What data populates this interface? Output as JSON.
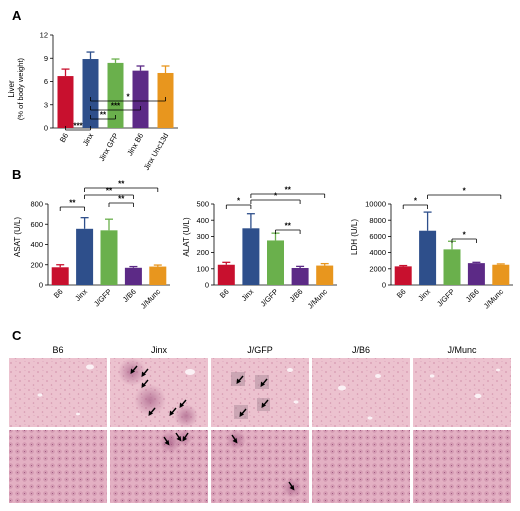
{
  "colors": {
    "B6": "#c8102e",
    "Jinx": "#2e4f8b",
    "JinxGFP": "#6ab04c",
    "JinxB6": "#5c2a86",
    "JinxUnc13d": "#e8961e",
    "tissue_light": "#ecc2cf",
    "tissue_dense": "#d594ae"
  },
  "panel_letters": [
    "A",
    "B",
    "C"
  ],
  "chart_data": [
    {
      "panel": "A",
      "type": "bar",
      "ylabel_lines": [
        "Liver",
        "(% of body weight)"
      ],
      "ylim": [
        0,
        12
      ],
      "yticks": [
        0,
        3,
        6,
        9,
        12
      ],
      "categories": [
        "B6",
        "Jinx",
        "Jinx GFP",
        "Jinx B6",
        "Jinx Unc13d"
      ],
      "values": [
        6.7,
        8.9,
        8.4,
        7.4,
        7.1
      ],
      "errors": [
        0.9,
        0.9,
        0.5,
        0.6,
        0.9
      ],
      "color_keys": [
        "B6",
        "Jinx",
        "JinxGFP",
        "JinxB6",
        "JinxUnc13d"
      ],
      "significance": [
        {
          "from": 0,
          "to": 1,
          "label": "***"
        },
        {
          "from": 1,
          "to": 2,
          "label": "**"
        },
        {
          "from": 1,
          "to": 3,
          "label": "***"
        },
        {
          "from": 1,
          "to": 4,
          "label": "*"
        }
      ]
    },
    {
      "panel": "B",
      "type": "bar",
      "ylabel": "ASAT (U/L)",
      "ylim": [
        0,
        800
      ],
      "yticks": [
        0,
        200,
        400,
        600,
        800
      ],
      "categories": [
        "B6",
        "Jinx",
        "J/GFP",
        "J/B6",
        "J/Munc"
      ],
      "values": [
        175,
        555,
        540,
        170,
        182
      ],
      "errors": [
        25,
        110,
        110,
        12,
        15
      ],
      "color_keys": [
        "B6",
        "Jinx",
        "JinxGFP",
        "JinxB6",
        "JinxUnc13d"
      ],
      "significance": [
        {
          "from": 0,
          "to": 1,
          "label": "**"
        },
        {
          "from": 2,
          "to": 3,
          "label": "**"
        },
        {
          "from": 1,
          "to": 3,
          "label": "**"
        },
        {
          "from": 1,
          "to": 4,
          "label": "**"
        }
      ]
    },
    {
      "panel": "B",
      "type": "bar",
      "ylabel": "ALAT (U/L)",
      "ylim": [
        0,
        500
      ],
      "yticks": [
        0,
        100,
        200,
        300,
        400,
        500
      ],
      "categories": [
        "B6",
        "Jinx",
        "J/GFP",
        "J/B6",
        "J/Munc"
      ],
      "values": [
        125,
        350,
        275,
        105,
        120
      ],
      "errors": [
        15,
        90,
        45,
        10,
        12
      ],
      "color_keys": [
        "B6",
        "Jinx",
        "JinxGFP",
        "JinxB6",
        "JinxUnc13d"
      ],
      "significance": [
        {
          "from": 0,
          "to": 1,
          "label": "*"
        },
        {
          "from": 2,
          "to": 3,
          "label": "**"
        },
        {
          "from": 1,
          "to": 3,
          "label": "*"
        },
        {
          "from": 1,
          "to": 4,
          "label": "**"
        }
      ]
    },
    {
      "panel": "B",
      "type": "bar",
      "ylabel": "LDH (U/L)",
      "ylim": [
        0,
        10000
      ],
      "yticks": [
        0,
        2000,
        4000,
        6000,
        8000,
        10000
      ],
      "categories": [
        "B6",
        "Jinx",
        "J/GFP",
        "J/B6",
        "J/Munc"
      ],
      "values": [
        2300,
        6700,
        4400,
        2700,
        2500
      ],
      "errors": [
        100,
        2300,
        1000,
        100,
        100
      ],
      "color_keys": [
        "B6",
        "Jinx",
        "JinxGFP",
        "JinxB6",
        "JinxUnc13d"
      ],
      "significance": [
        {
          "from": 0,
          "to": 1,
          "label": "*"
        },
        {
          "from": 2,
          "to": 3,
          "label": "*"
        },
        {
          "from": 1,
          "to": 4,
          "label": "*"
        }
      ]
    }
  ],
  "histology": {
    "column_titles": [
      "B6",
      "Jinx",
      "J/GFP",
      "J/B6",
      "J/Munc"
    ],
    "rows": [
      {
        "magnification": "low",
        "arrow_counts": [
          0,
          6,
          4,
          0,
          0
        ]
      },
      {
        "magnification": "high",
        "arrow_counts": [
          0,
          3,
          2,
          0,
          0
        ]
      }
    ]
  }
}
